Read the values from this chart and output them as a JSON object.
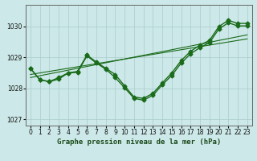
{
  "xlabel": "Graphe pression niveau de la mer (hPa)",
  "background_color": "#cce8e8",
  "grid_color": "#aacccc",
  "line_color": "#1a6b1a",
  "xlim": [
    -0.5,
    23.5
  ],
  "ylim": [
    1026.8,
    1030.7
  ],
  "yticks": [
    1027,
    1028,
    1029,
    1030
  ],
  "xticks": [
    0,
    1,
    2,
    3,
    4,
    5,
    6,
    7,
    8,
    9,
    10,
    11,
    12,
    13,
    14,
    15,
    16,
    17,
    18,
    19,
    20,
    21,
    22,
    23
  ],
  "y_main": [
    1028.65,
    1028.28,
    1028.22,
    1028.3,
    1028.5,
    1028.52,
    1029.05,
    1028.82,
    1028.62,
    1028.35,
    1028.02,
    1027.68,
    1027.62,
    1027.78,
    1028.12,
    1028.42,
    1028.82,
    1029.12,
    1029.32,
    1029.48,
    1029.92,
    1030.12,
    1030.02,
    1030.02
  ],
  "y_linear1": [
    1028.45,
    1028.5,
    1028.55,
    1028.6,
    1028.65,
    1028.7,
    1028.75,
    1028.8,
    1028.85,
    1028.9,
    1028.95,
    1029.0,
    1029.05,
    1029.1,
    1029.15,
    1029.2,
    1029.25,
    1029.3,
    1029.35,
    1029.4,
    1029.45,
    1029.5,
    1029.55,
    1029.6
  ],
  "y_linear2": [
    1028.35,
    1028.41,
    1028.47,
    1028.53,
    1028.59,
    1028.65,
    1028.71,
    1028.77,
    1028.83,
    1028.89,
    1028.95,
    1029.01,
    1029.07,
    1029.13,
    1029.19,
    1029.25,
    1029.31,
    1029.37,
    1029.43,
    1029.49,
    1029.55,
    1029.61,
    1029.67,
    1029.73
  ],
  "y_jagged": [
    1028.65,
    1028.28,
    1028.22,
    1028.35,
    1028.5,
    1028.55,
    1029.08,
    1028.85,
    1028.65,
    1028.45,
    1028.08,
    1027.72,
    1027.68,
    1027.84,
    1028.18,
    1028.5,
    1028.9,
    1029.2,
    1029.4,
    1029.55,
    1030.0,
    1030.2,
    1030.1,
    1030.1
  ],
  "marker": "D",
  "marker_size": 2.5,
  "line_width": 1.0,
  "label_fontsize": 6.5,
  "tick_fontsize": 5.5
}
